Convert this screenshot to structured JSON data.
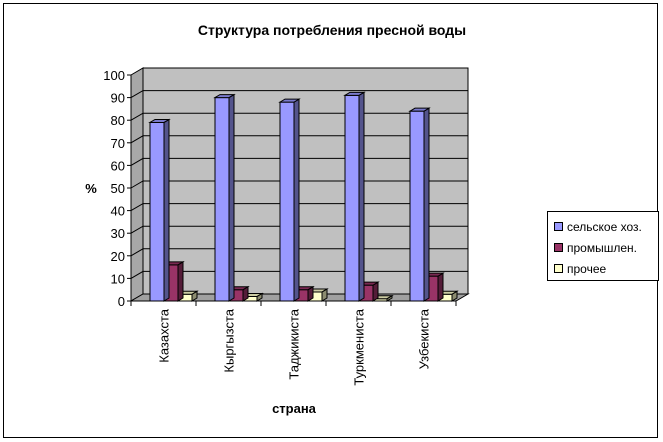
{
  "chart_data": {
    "type": "bar",
    "title": "Структура потребления пресной воды",
    "xlabel": "страна",
    "ylabel": "%",
    "ylim": [
      0,
      100
    ],
    "yticks": [
      0,
      10,
      20,
      30,
      40,
      50,
      60,
      70,
      80,
      90,
      100
    ],
    "categories": [
      "Казахста",
      "Кыргызста",
      "Таджикиста",
      "Туркмениста",
      "Узбекиста"
    ],
    "series": [
      {
        "name": "сельское хоз.",
        "values": [
          79,
          90,
          88,
          91,
          84
        ],
        "color": "#9999ff"
      },
      {
        "name": "промышлен.",
        "values": [
          16,
          5,
          5,
          7,
          11
        ],
        "color": "#993366"
      },
      {
        "name": "прочее",
        "values": [
          3,
          2,
          4,
          1,
          3
        ],
        "color": "#ffffcc"
      }
    ],
    "grid": true,
    "legend": "right",
    "three_d": true,
    "wall_color": "#c0c0c0"
  }
}
